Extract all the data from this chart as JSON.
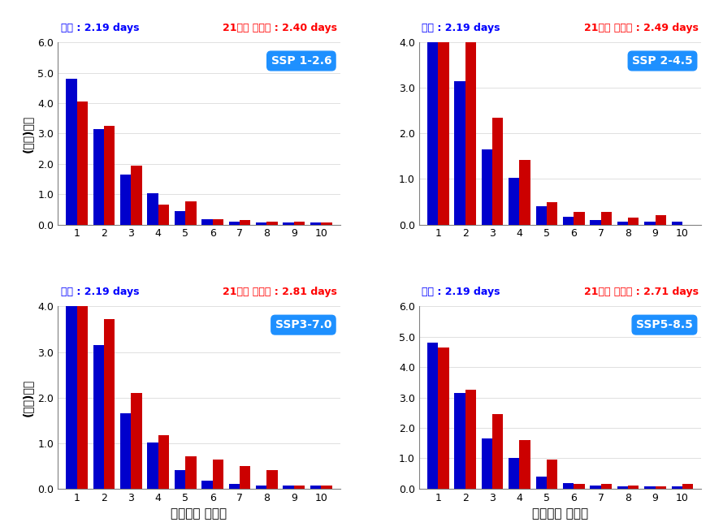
{
  "subplots": [
    {
      "label": "SSP 1-2.6",
      "current_days": "2.19",
      "future_days": "2.40",
      "ylim": [
        0,
        6.0
      ],
      "yticks": [
        0.0,
        1.0,
        2.0,
        3.0,
        4.0,
        5.0,
        6.0
      ],
      "blue": [
        4.8,
        3.15,
        1.65,
        1.02,
        0.45,
        0.17,
        0.1,
        0.07,
        0.07,
        0.06
      ],
      "red": [
        4.05,
        3.25,
        1.95,
        0.65,
        0.77,
        0.17,
        0.16,
        0.1,
        0.1,
        0.07
      ]
    },
    {
      "label": "SSP 2-4.5",
      "current_days": "2.19",
      "future_days": "2.49",
      "ylim": [
        0,
        4.0
      ],
      "yticks": [
        0.0,
        1.0,
        2.0,
        3.0,
        4.0
      ],
      "blue": [
        4.0,
        3.15,
        1.65,
        1.02,
        0.4,
        0.17,
        0.1,
        0.06,
        0.06,
        0.06
      ],
      "red": [
        4.0,
        4.0,
        2.35,
        1.42,
        0.5,
        0.28,
        0.28,
        0.15,
        0.2,
        0.0
      ]
    },
    {
      "label": "SSP3-7.0",
      "current_days": "2.19",
      "future_days": "2.81",
      "ylim": [
        0,
        4.0
      ],
      "yticks": [
        0.0,
        1.0,
        2.0,
        3.0,
        4.0
      ],
      "blue": [
        4.0,
        3.15,
        1.65,
        1.02,
        0.4,
        0.17,
        0.1,
        0.06,
        0.06,
        0.06
      ],
      "red": [
        4.0,
        3.73,
        2.1,
        1.18,
        0.7,
        0.63,
        0.5,
        0.4,
        0.07,
        0.07
      ]
    },
    {
      "label": "SSP5-8.5",
      "current_days": "2.19",
      "future_days": "2.71",
      "ylim": [
        0,
        6.0
      ],
      "yticks": [
        0.0,
        1.0,
        2.0,
        3.0,
        4.0,
        5.0,
        6.0
      ],
      "blue": [
        4.8,
        3.15,
        1.65,
        1.02,
        0.4,
        0.17,
        0.1,
        0.07,
        0.07,
        0.06
      ],
      "red": [
        4.65,
        3.25,
        2.45,
        1.6,
        0.95,
        0.15,
        0.15,
        0.1,
        0.07,
        0.15
      ]
    }
  ],
  "blue_color": "#0000CC",
  "red_color": "#CC0000",
  "label_color_blue": "#0000FF",
  "label_color_red": "#FF0000",
  "box_color": "#1E90FF",
  "xlabel": "대기정체 지속일",
  "ylabel": "(회으)빈도",
  "current_label": "현재",
  "future_label": "21세기 후반기",
  "bg_color": "#FFFFFF"
}
